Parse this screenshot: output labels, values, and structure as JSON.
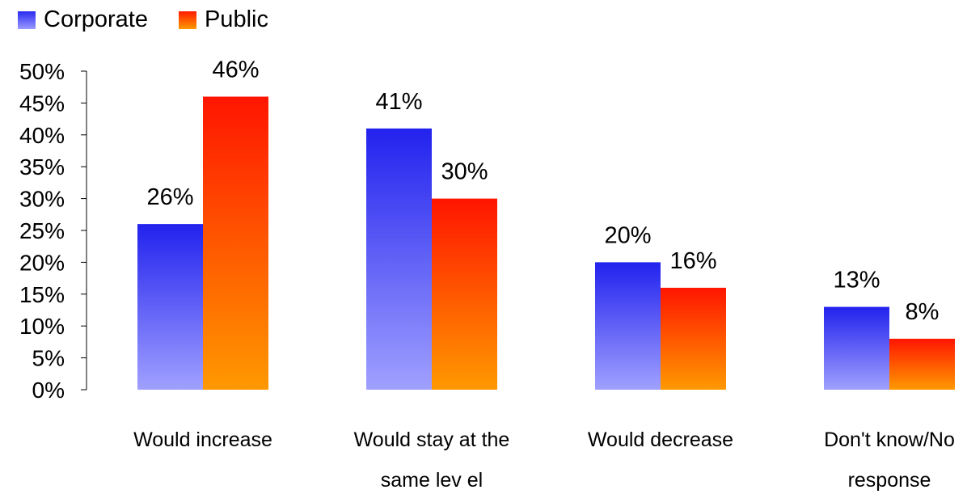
{
  "chart_data": {
    "type": "bar",
    "categories": [
      "Would increase",
      "Would stay  at the same lev el",
      "Would decrease",
      "Don't know/No response"
    ],
    "category_lines": [
      [
        "Would increase"
      ],
      [
        "Would stay  at the",
        "same lev el"
      ],
      [
        "Would decrease"
      ],
      [
        "Don't know/No",
        "response"
      ]
    ],
    "series": [
      {
        "name": "Corporate",
        "values": [
          26,
          41,
          20,
          13
        ],
        "labels": [
          "26%",
          "41%",
          "20%",
          "13%"
        ],
        "color_top": "#2222ee",
        "color_bottom": "#a0a0ff"
      },
      {
        "name": "Public",
        "values": [
          46,
          30,
          16,
          8
        ],
        "labels": [
          "46%",
          "30%",
          "16%",
          "8%"
        ],
        "color_top": "#ff1500",
        "color_bottom": "#ff9900"
      }
    ],
    "ylim": [
      0,
      50
    ],
    "yticks": [
      "0%",
      "5%",
      "10%",
      "15%",
      "20%",
      "25%",
      "30%",
      "35%",
      "40%",
      "45%",
      "50%"
    ],
    "grid": false,
    "legend_position": "top-left"
  }
}
